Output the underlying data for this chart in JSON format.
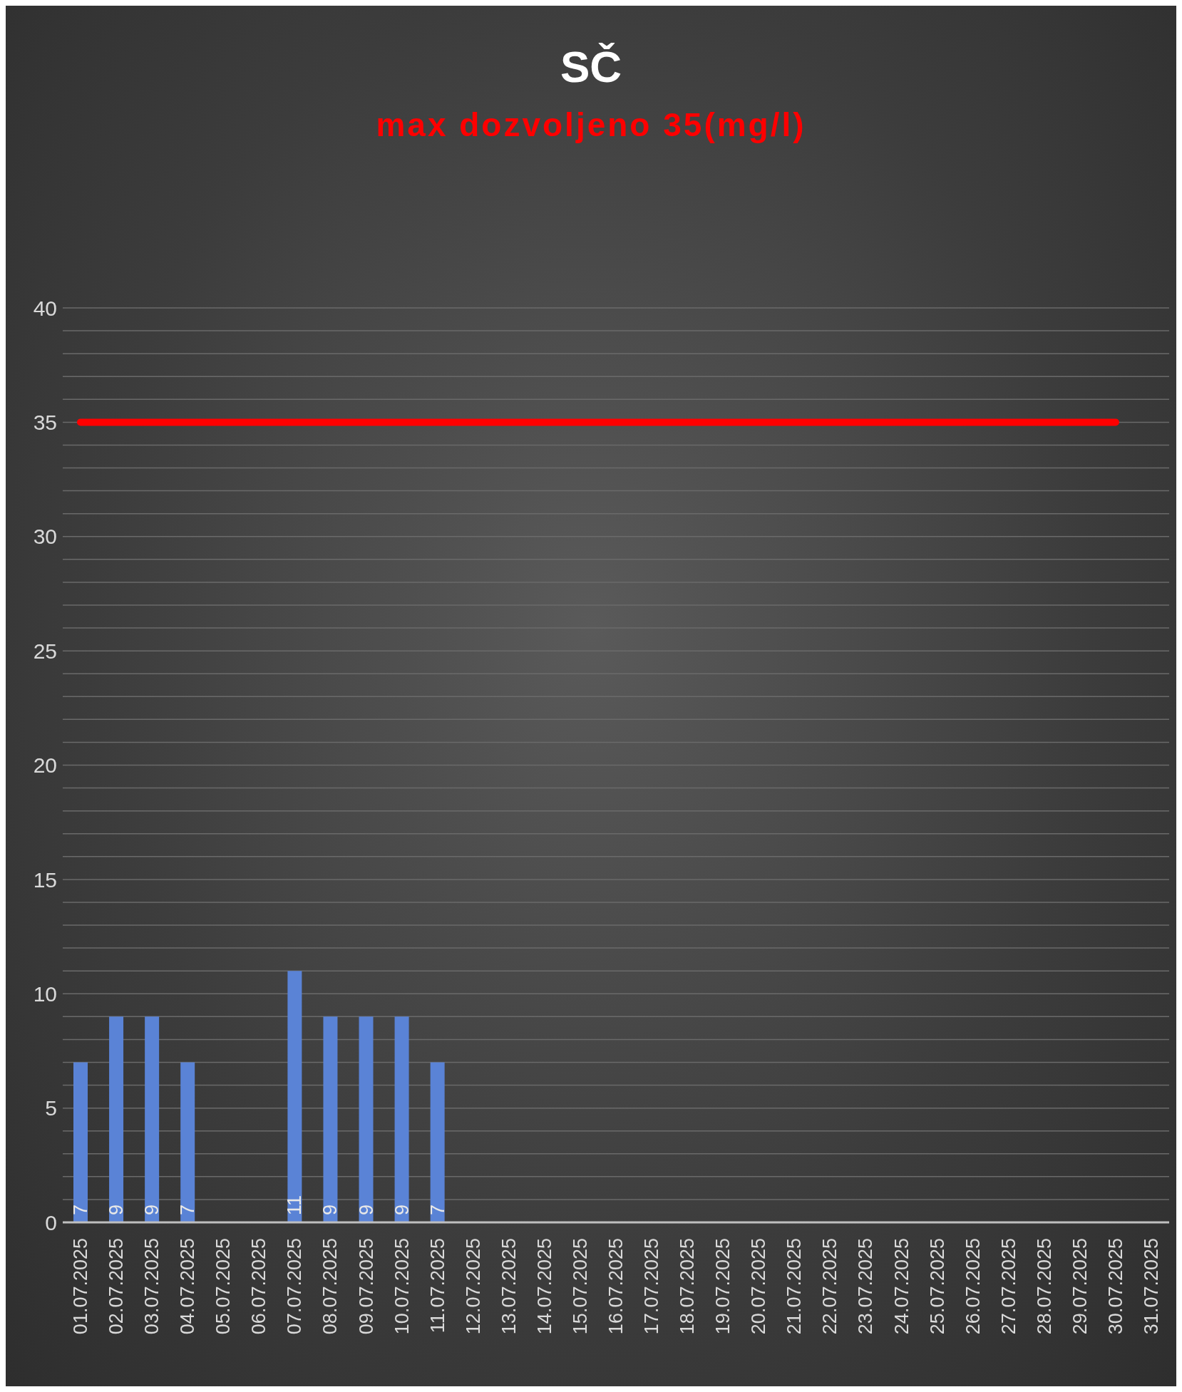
{
  "chart_data": {
    "type": "bar",
    "title": "SČ",
    "subtitle": "max dozvoljeno 35(mg/l)",
    "categories": [
      "01.07.2025",
      "02.07.2025",
      "03.07.2025",
      "04.07.2025",
      "05.07.2025",
      "06.07.2025",
      "07.07.2025",
      "08.07.2025",
      "09.07.2025",
      "10.07.2025",
      "11.07.2025",
      "12.07.2025",
      "13.07.2025",
      "14.07.2025",
      "15.07.2025",
      "16.07.2025",
      "17.07.2025",
      "18.07.2025",
      "19.07.2025",
      "20.07.2025",
      "21.07.2025",
      "22.07.2025",
      "23.07.2025",
      "24.07.2025",
      "25.07.2025",
      "26.07.2025",
      "27.07.2025",
      "28.07.2025",
      "29.07.2025",
      "30.07.2025",
      "31.07.2025"
    ],
    "series": [
      {
        "color": "#5a83d6",
        "values": [
          7,
          9,
          9,
          7,
          null,
          null,
          11,
          9,
          9,
          9,
          7,
          null,
          null,
          null,
          null,
          null,
          null,
          null,
          null,
          null,
          null,
          null,
          null,
          null,
          null,
          null,
          null,
          null,
          null,
          null,
          null
        ],
        "value_labels": [
          "7",
          "9",
          "9",
          "7",
          null,
          null,
          "11",
          "9",
          "9",
          "9",
          "7",
          null,
          null,
          null,
          null,
          null,
          null,
          null,
          null,
          null,
          null,
          null,
          null,
          null,
          null,
          null,
          null,
          null,
          null,
          null,
          null
        ]
      },
      {
        "type": "line",
        "color": "#ff0000",
        "values": [
          35,
          35,
          35,
          35,
          35,
          35,
          35,
          35,
          35,
          35,
          35,
          35,
          35,
          35,
          35,
          35,
          35,
          35,
          35,
          35,
          35,
          35,
          35,
          35,
          35,
          35,
          35,
          35,
          35,
          35,
          null
        ]
      }
    ],
    "ylim": [
      0,
      40
    ],
    "yticks": [
      0,
      {
        "value": 1,
        "label": null
      },
      {
        "value": 2,
        "label": null
      },
      {
        "value": 3,
        "label": null
      },
      {
        "value": 4,
        "label": null
      },
      5,
      {
        "value": 6,
        "label": null
      },
      {
        "value": 7,
        "label": null
      },
      {
        "value": 8,
        "label": null
      },
      {
        "value": 9,
        "label": null
      },
      10,
      {
        "value": 11,
        "label": null
      },
      {
        "value": 12,
        "label": null
      },
      {
        "value": 13,
        "label": null
      },
      {
        "value": 14,
        "label": null
      },
      15,
      {
        "value": 16,
        "label": null
      },
      {
        "value": 17,
        "label": null
      },
      {
        "value": 18,
        "label": null
      },
      {
        "value": 19,
        "label": null
      },
      20,
      {
        "value": 21,
        "label": null
      },
      {
        "value": 22,
        "label": null
      },
      {
        "value": 23,
        "label": null
      },
      {
        "value": 24,
        "label": null
      },
      25,
      {
        "value": 26,
        "label": null
      },
      {
        "value": 27,
        "label": null
      },
      {
        "value": 28,
        "label": null
      },
      {
        "value": 29,
        "label": null
      },
      30,
      {
        "value": 31,
        "label": null
      },
      {
        "value": 32,
        "label": null
      },
      {
        "value": 33,
        "label": null
      },
      {
        "value": 34,
        "label": null
      },
      35,
      {
        "value": 36,
        "label": null
      },
      {
        "value": 37,
        "label": null
      },
      {
        "value": 38,
        "label": null
      },
      {
        "value": 39,
        "label": null
      },
      40
    ],
    "grid": "y",
    "marker": "none"
  }
}
